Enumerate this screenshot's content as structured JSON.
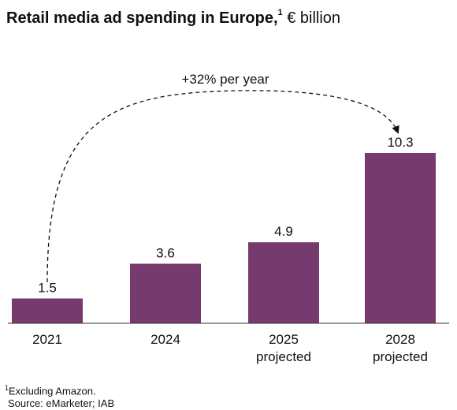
{
  "title": {
    "main": "Retail media ad spending in Europe,",
    "footnote_mark": "1",
    "unit": "€ billion"
  },
  "annotation": "+32% per year",
  "chart_data": {
    "type": "bar",
    "categories": [
      {
        "line1": "2021",
        "line2": ""
      },
      {
        "line1": "2024",
        "line2": ""
      },
      {
        "line1": "2025",
        "line2": "projected"
      },
      {
        "line1": "2028",
        "line2": "projected"
      }
    ],
    "values": [
      1.5,
      3.6,
      4.9,
      10.3
    ],
    "value_labels": [
      "1.5",
      "3.6",
      "4.9",
      "10.3"
    ],
    "ylim": [
      0,
      10.3
    ],
    "grid": false,
    "bar_color": "#773a6e"
  },
  "footnote": {
    "mark": "1",
    "note": "Excluding Amazon.",
    "source": "Source: eMarketer; IAB"
  }
}
